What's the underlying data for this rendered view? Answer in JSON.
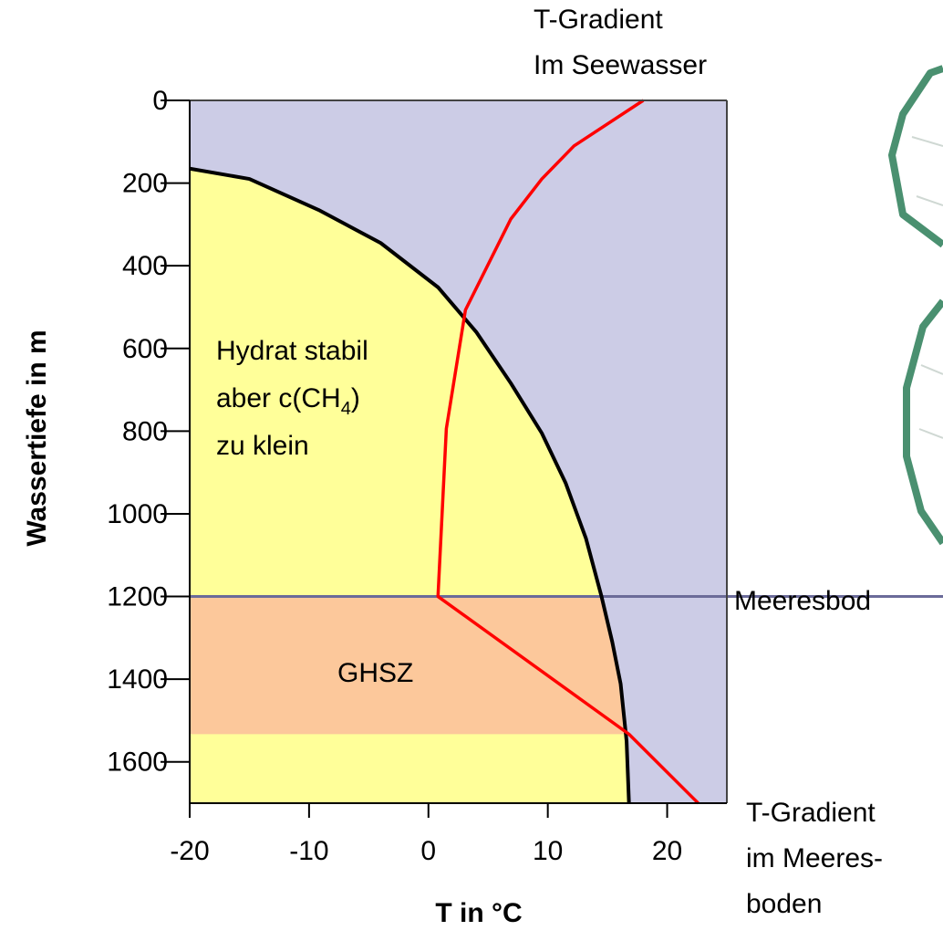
{
  "chart_data": {
    "type": "line",
    "x_label": "T in °C",
    "y_label": "Wassertiefe in m",
    "xlim": [
      -20,
      25
    ],
    "ylim": [
      0,
      1700
    ],
    "y_inverted": true,
    "xticks": [
      -20,
      -10,
      0,
      10,
      20
    ],
    "yticks": [
      0,
      200,
      400,
      600,
      800,
      1000,
      1200,
      1400,
      1600
    ],
    "series": [
      {
        "color": "#000000",
        "x": [
          -20,
          -15,
          -9.2,
          -4,
          0.8,
          4,
          6.9,
          9.5,
          11.5,
          13.2,
          14.5,
          15.4,
          16.1,
          16.6,
          16.8
        ],
        "values": [
          165,
          190,
          265,
          345,
          452,
          560,
          684,
          805,
          926,
          1060,
          1200,
          1310,
          1411,
          1550,
          1700
        ]
      },
      {
        "color": "#ff0000",
        "x": [
          18.0,
          12.2,
          9.5,
          6.9,
          3.1,
          1.5,
          0.8,
          16.8,
          22.6
        ],
        "values": [
          0,
          110,
          190,
          287,
          507,
          794,
          1200,
          1533,
          1700
        ]
      }
    ],
    "seafloor_depth": 1200,
    "ghsz_base_depth": 1533,
    "region_colors": {
      "water": "#ccccE6",
      "stable": "#ffff99",
      "ghsz": "#fcc89b",
      "seafloor_line": "#6b6b99"
    },
    "annotations": {
      "seawater_gradient": [
        "T-Gradient",
        "Im Seewasser"
      ],
      "sediment_gradient": [
        "T-Gradient",
        "im Meeres-",
        "boden"
      ],
      "seafloor": "Meeresbod",
      "ghsz": "GHSZ",
      "stable_zone": [
        "Hydrat stabil",
        [
          "aber c(CH",
          "4",
          ")"
        ],
        "zu klein"
      ]
    }
  }
}
